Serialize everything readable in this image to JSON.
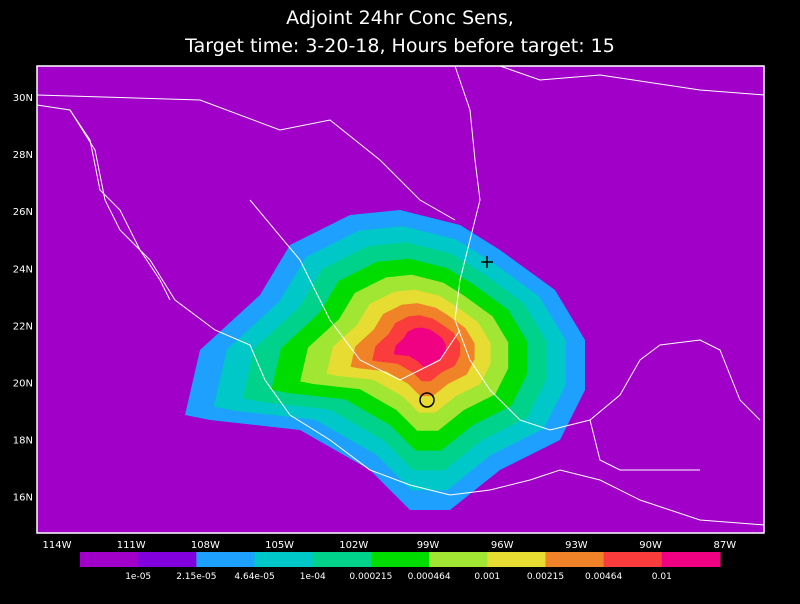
{
  "title": [
    "Adjoint 24hr Conc Sens,",
    "Target time: 3-20-18, Hours before target: 15"
  ],
  "lat_labels": [
    "30N",
    "28N",
    "26N",
    "24N",
    "22N",
    "20N",
    "18N",
    "16N"
  ],
  "lon_labels": [
    "114W",
    "111W",
    "108W",
    "105W",
    "102W",
    "99W",
    "96W",
    "93W",
    "90W",
    "87W"
  ],
  "colorbar": {
    "colors": [
      "#a000c8",
      "#8200dc",
      "#1ea0ff",
      "#00c8c8",
      "#00d28c",
      "#00dc00",
      "#a0e632",
      "#e6dc32",
      "#f08228",
      "#fa3c3c",
      "#f00082"
    ],
    "labels": [
      "1e-05",
      "2.15e-05",
      "4.64e-05",
      "1e-04",
      "0.000215",
      "0.000464",
      "0.001",
      "0.00215",
      "0.00464",
      "0.01"
    ]
  }
}
